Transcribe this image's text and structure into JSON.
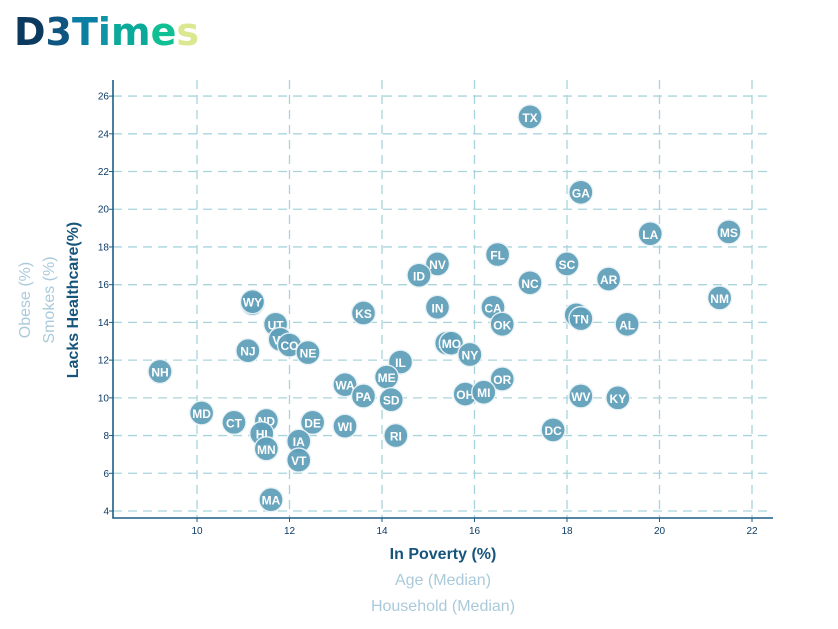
{
  "brand": {
    "letters": [
      {
        "ch": "D",
        "color": "#0c3a5e"
      },
      {
        "ch": "3",
        "color": "#0e557f"
      },
      {
        "ch": "T",
        "color": "#0b7fa3"
      },
      {
        "ch": "i",
        "color": "#0d94a7"
      },
      {
        "ch": "m",
        "color": "#0aa99a"
      },
      {
        "ch": "e",
        "color": "#10bf93"
      },
      {
        "ch": "s",
        "color": "#dbe88f"
      }
    ]
  },
  "chart_data": {
    "type": "scatter",
    "title": "",
    "xlabel": "In Poverty (%)",
    "ylabel": "Lacks Healthcare(%)",
    "x_axis_options": [
      {
        "label": "In Poverty (%)",
        "active": true
      },
      {
        "label": "Age (Median)",
        "active": false
      },
      {
        "label": "Household (Median)",
        "active": false
      }
    ],
    "y_axis_options": [
      {
        "label": "Lacks Healthcare(%)",
        "active": true
      },
      {
        "label": "Smokes (%)",
        "active": false
      },
      {
        "label": "Obese (%)",
        "active": false
      }
    ],
    "xlim": [
      8.2,
      22.5
    ],
    "ylim": [
      3.6,
      26.9
    ],
    "x_ticks": [
      10,
      12,
      14,
      16,
      18,
      20,
      22
    ],
    "y_ticks": [
      4,
      6,
      8,
      10,
      12,
      14,
      16,
      18,
      20,
      22,
      24,
      26
    ],
    "grid": true,
    "points": [
      {
        "abbr": "TX",
        "x": 17.2,
        "y": 24.9
      },
      {
        "abbr": "GA",
        "x": 18.3,
        "y": 20.9
      },
      {
        "abbr": "LA",
        "x": 19.8,
        "y": 18.7
      },
      {
        "abbr": "MS",
        "x": 21.5,
        "y": 18.8
      },
      {
        "abbr": "NM",
        "x": 21.3,
        "y": 15.3
      },
      {
        "abbr": "FL",
        "x": 16.5,
        "y": 17.6
      },
      {
        "abbr": "SC",
        "x": 18.0,
        "y": 17.1
      },
      {
        "abbr": "AR",
        "x": 18.9,
        "y": 16.3
      },
      {
        "abbr": "NC",
        "x": 17.2,
        "y": 16.1
      },
      {
        "abbr": "NV",
        "x": 15.2,
        "y": 17.1
      },
      {
        "abbr": "ID",
        "x": 14.8,
        "y": 16.5
      },
      {
        "abbr": "IN",
        "x": 15.2,
        "y": 14.8
      },
      {
        "abbr": "CA",
        "x": 16.4,
        "y": 14.8
      },
      {
        "abbr": "OK",
        "x": 16.6,
        "y": 13.9
      },
      {
        "abbr": "AZ",
        "x": 18.2,
        "y": 14.4
      },
      {
        "abbr": "TN",
        "x": 18.3,
        "y": 14.2
      },
      {
        "abbr": "AL",
        "x": 19.3,
        "y": 13.9
      },
      {
        "abbr": "KS",
        "x": 13.6,
        "y": 14.5
      },
      {
        "abbr": "MT",
        "x": 15.4,
        "y": 12.9
      },
      {
        "abbr": "MO",
        "x": 15.5,
        "y": 12.9
      },
      {
        "abbr": "NY",
        "x": 15.9,
        "y": 12.3
      },
      {
        "abbr": "IL",
        "x": 14.4,
        "y": 11.9
      },
      {
        "abbr": "OR",
        "x": 16.6,
        "y": 11.0
      },
      {
        "abbr": "OH",
        "x": 15.8,
        "y": 10.2
      },
      {
        "abbr": "MI",
        "x": 16.2,
        "y": 10.3
      },
      {
        "abbr": "WV",
        "x": 18.3,
        "y": 10.1
      },
      {
        "abbr": "KY",
        "x": 19.1,
        "y": 10.0
      },
      {
        "abbr": "DC",
        "x": 17.7,
        "y": 8.3
      },
      {
        "abbr": "WA",
        "x": 13.2,
        "y": 10.7
      },
      {
        "abbr": "ME",
        "x": 14.1,
        "y": 11.1
      },
      {
        "abbr": "PA",
        "x": 13.6,
        "y": 10.1
      },
      {
        "abbr": "SD",
        "x": 14.2,
        "y": 9.9
      },
      {
        "abbr": "RI",
        "x": 14.3,
        "y": 8.0
      },
      {
        "abbr": "WI",
        "x": 13.2,
        "y": 8.5
      },
      {
        "abbr": "DE",
        "x": 12.5,
        "y": 8.7
      },
      {
        "abbr": "IA",
        "x": 12.2,
        "y": 7.7
      },
      {
        "abbr": "VT",
        "x": 12.2,
        "y": 6.7
      },
      {
        "abbr": "ND",
        "x": 11.5,
        "y": 8.8
      },
      {
        "abbr": "HI",
        "x": 11.4,
        "y": 8.1
      },
      {
        "abbr": "MN",
        "x": 11.5,
        "y": 7.3
      },
      {
        "abbr": "MA",
        "x": 11.6,
        "y": 4.6
      },
      {
        "abbr": "CT",
        "x": 10.8,
        "y": 8.7
      },
      {
        "abbr": "MD",
        "x": 10.1,
        "y": 9.2
      },
      {
        "abbr": "NH",
        "x": 9.2,
        "y": 11.4
      },
      {
        "abbr": "NJ",
        "x": 11.1,
        "y": 12.5
      },
      {
        "abbr": "UT",
        "x": 11.7,
        "y": 13.9
      },
      {
        "abbr": "VA",
        "x": 11.8,
        "y": 13.1
      },
      {
        "abbr": "CO",
        "x": 12.0,
        "y": 12.8
      },
      {
        "abbr": "NE",
        "x": 12.4,
        "y": 12.4
      },
      {
        "abbr": "AK",
        "x": 11.2,
        "y": 15.0
      },
      {
        "abbr": "WY",
        "x": 11.2,
        "y": 15.1
      }
    ],
    "colors": {
      "marker": "#5f9fba",
      "marker_label": "#ffffff",
      "axis": "#1b5f86",
      "grid": "#a8d5dc",
      "active_label": "#16547c",
      "inactive_label": "#aacadb"
    }
  }
}
